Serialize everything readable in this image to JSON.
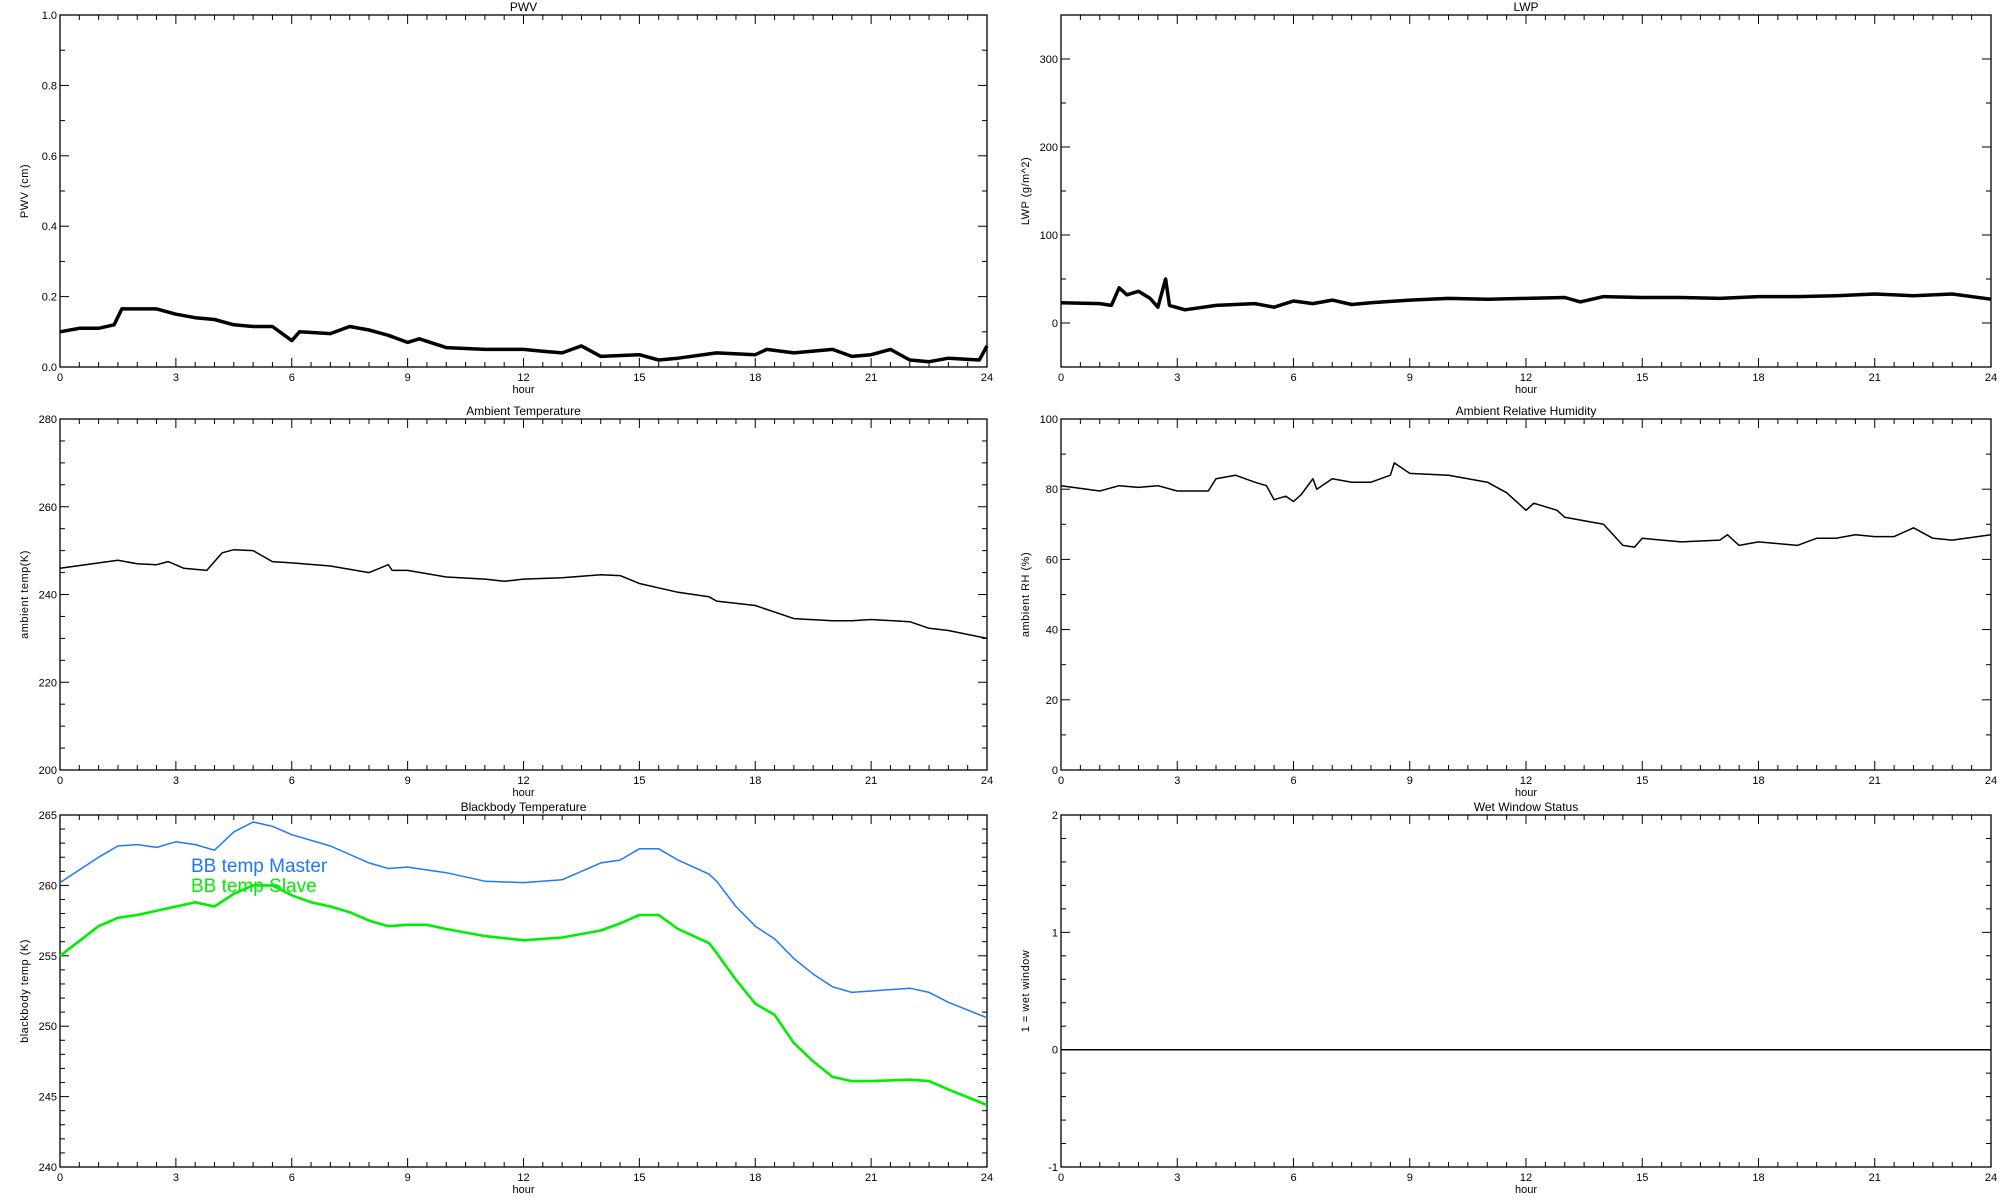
{
  "chart_data": [
    {
      "type": "line",
      "title": "PWV",
      "xlabel": "hour",
      "ylabel": "PWV (cm)",
      "xlim": [
        0,
        24
      ],
      "ylim": [
        0,
        1.0
      ],
      "xticks": [
        "0",
        "3",
        "6",
        "9",
        "12",
        "15",
        "18",
        "21",
        "24"
      ],
      "yticks": [
        "0.0",
        "0.2",
        "0.4",
        "0.6",
        "0.8",
        "1.0"
      ],
      "grid": false,
      "series": [
        {
          "color": "#000000",
          "x": [
            0,
            0.5,
            1,
            1.4,
            1.6,
            2,
            2.5,
            3,
            3.5,
            4,
            4.5,
            5,
            5.5,
            6,
            6.2,
            7,
            7.5,
            8,
            8.5,
            9,
            9.3,
            10,
            11,
            12,
            12.5,
            13,
            13.5,
            14,
            15,
            15.5,
            16,
            17,
            18,
            18.3,
            19,
            20,
            20.5,
            21,
            21.5,
            22,
            22.5,
            23,
            23.8,
            24
          ],
          "y": [
            0.1,
            0.11,
            0.11,
            0.12,
            0.165,
            0.165,
            0.165,
            0.15,
            0.14,
            0.135,
            0.12,
            0.115,
            0.115,
            0.075,
            0.1,
            0.095,
            0.115,
            0.105,
            0.09,
            0.07,
            0.08,
            0.055,
            0.05,
            0.05,
            0.045,
            0.04,
            0.06,
            0.03,
            0.035,
            0.02,
            0.025,
            0.04,
            0.035,
            0.05,
            0.04,
            0.05,
            0.03,
            0.035,
            0.05,
            0.02,
            0.015,
            0.025,
            0.02,
            0.06
          ]
        }
      ]
    },
    {
      "type": "line",
      "title": "LWP",
      "xlabel": "hour",
      "ylabel": "LWP (g/m^2)",
      "xlim": [
        0,
        24
      ],
      "ylim": [
        -50,
        350
      ],
      "xticks": [
        "0",
        "3",
        "6",
        "9",
        "12",
        "15",
        "18",
        "21",
        "24"
      ],
      "yticks": [
        "0",
        "100",
        "200",
        "300"
      ],
      "grid": false,
      "series": [
        {
          "color": "#000000",
          "x": [
            0,
            1,
            1.3,
            1.5,
            1.7,
            2,
            2.3,
            2.5,
            2.7,
            2.8,
            3.2,
            4,
            5,
            5.5,
            6,
            6.5,
            7,
            7.5,
            8,
            9,
            10,
            11,
            12,
            13,
            13.4,
            14,
            15,
            16,
            17,
            18,
            19,
            20,
            21,
            22,
            23,
            24
          ],
          "y": [
            23,
            22,
            20,
            40,
            32,
            36,
            28,
            18,
            50,
            20,
            15,
            20,
            22,
            18,
            25,
            22,
            26,
            21,
            23,
            26,
            28,
            27,
            28,
            29,
            24,
            30,
            29,
            29,
            28,
            30,
            30,
            31,
            33,
            31,
            33,
            27
          ]
        }
      ]
    },
    {
      "type": "line",
      "title": "Ambient Temperature",
      "xlabel": "hour",
      "ylabel": "ambient temp(K)",
      "xlim": [
        0,
        24
      ],
      "ylim": [
        200,
        280
      ],
      "xticks": [
        "0",
        "3",
        "6",
        "9",
        "12",
        "15",
        "18",
        "21",
        "24"
      ],
      "yticks": [
        "200",
        "220",
        "240",
        "260",
        "280"
      ],
      "grid": false,
      "series": [
        {
          "color": "#000000",
          "x": [
            0,
            1.5,
            2,
            2.5,
            2.8,
            3.2,
            3.8,
            4.2,
            4.5,
            5,
            5.5,
            6,
            7,
            8,
            8.5,
            8.6,
            9,
            10,
            11,
            11.5,
            12,
            13,
            14,
            14.5,
            15,
            16,
            16.8,
            17,
            18,
            19,
            20,
            20.5,
            21,
            22,
            22.5,
            23,
            24
          ],
          "y": [
            246,
            247.8,
            247,
            246.8,
            247.5,
            246,
            245.5,
            249.5,
            250.2,
            250,
            247.5,
            247.2,
            246.5,
            245,
            246.8,
            245.5,
            245.5,
            244,
            243.5,
            243,
            243.5,
            243.8,
            244.5,
            244.3,
            242.5,
            240.5,
            239.5,
            238.5,
            237.5,
            234.5,
            234,
            234,
            234.3,
            233.8,
            232.3,
            231.8,
            230
          ]
        }
      ]
    },
    {
      "type": "line",
      "title": "Ambient Relative Humidity",
      "xlabel": "hour",
      "ylabel": "ambient RH (%)",
      "xlim": [
        0,
        24
      ],
      "ylim": [
        0,
        100
      ],
      "xticks": [
        "0",
        "3",
        "6",
        "9",
        "12",
        "15",
        "18",
        "21",
        "24"
      ],
      "yticks": [
        "0",
        "20",
        "40",
        "60",
        "80",
        "100"
      ],
      "grid": false,
      "series": [
        {
          "color": "#000000",
          "x": [
            0,
            1,
            1.5,
            2,
            2.5,
            3,
            3.8,
            4,
            4.5,
            5,
            5.3,
            5.5,
            5.8,
            6,
            6.2,
            6.5,
            6.6,
            7,
            7.5,
            8,
            8.5,
            8.6,
            9,
            10,
            11,
            11.5,
            12,
            12.2,
            12.8,
            13,
            13.5,
            14,
            14.5,
            14.8,
            15,
            16,
            17,
            17.2,
            17.5,
            18,
            18.5,
            19,
            19.5,
            20,
            20.5,
            21,
            21.5,
            22,
            22.5,
            23,
            24
          ],
          "y": [
            81,
            79.5,
            81,
            80.5,
            81,
            79.5,
            79.5,
            83,
            84,
            82,
            81,
            77,
            78,
            76.5,
            78.5,
            83,
            80,
            83,
            82,
            82,
            84,
            87.5,
            84.5,
            84,
            82,
            79,
            74,
            76,
            74,
            72,
            71,
            70,
            64,
            63.5,
            66,
            65,
            65.5,
            67,
            64,
            65,
            64.5,
            64,
            66,
            66,
            67,
            66.5,
            66.5,
            69,
            66,
            65.5,
            67
          ]
        }
      ]
    },
    {
      "type": "line",
      "title": "Blackbody Temperature",
      "xlabel": "hour",
      "ylabel": "blackbody temp (K)",
      "xlim": [
        0,
        24
      ],
      "ylim": [
        240,
        265
      ],
      "xticks": [
        "0",
        "3",
        "6",
        "9",
        "12",
        "15",
        "18",
        "21",
        "24"
      ],
      "yticks": [
        "240",
        "245",
        "250",
        "255",
        "260",
        "265"
      ],
      "grid": false,
      "legend_position": "top-left",
      "series": [
        {
          "name": "BB temp Master",
          "color": "#1e78ff",
          "x": [
            0,
            1,
            1.5,
            2,
            2.5,
            3,
            3.5,
            4,
            4.5,
            5,
            5.5,
            6,
            7,
            8,
            8.5,
            9,
            10,
            11,
            12,
            13,
            14,
            14.5,
            15,
            15.5,
            16,
            16.8,
            17,
            17.5,
            18,
            18.5,
            19,
            19.5,
            20,
            20.5,
            21,
            22,
            22.5,
            23,
            24
          ],
          "y": [
            260.2,
            262,
            262.8,
            262.9,
            262.7,
            263.1,
            262.9,
            262.5,
            263.8,
            264.5,
            264.2,
            263.6,
            262.8,
            261.6,
            261.2,
            261.3,
            260.9,
            260.3,
            260.2,
            260.4,
            261.6,
            261.8,
            262.6,
            262.6,
            261.8,
            260.8,
            260.3,
            258.5,
            257.1,
            256.2,
            254.8,
            253.7,
            252.8,
            252.4,
            252.5,
            252.7,
            252.4,
            251.7,
            250.6
          ]
        },
        {
          "name": "BB temp Slave",
          "color": "#00ee00",
          "x": [
            0,
            1,
            1.5,
            2,
            3,
            3.5,
            4,
            4.5,
            5,
            5.5,
            6,
            6.5,
            7,
            7.5,
            8,
            8.5,
            9,
            9.5,
            10,
            11,
            12,
            13,
            14,
            14.5,
            15,
            15.5,
            16,
            16.8,
            17,
            17.5,
            18,
            18.5,
            19,
            19.5,
            20,
            20.5,
            21,
            22,
            22.5,
            23,
            24
          ],
          "y": [
            255,
            257.1,
            257.7,
            257.9,
            258.5,
            258.8,
            258.5,
            259.4,
            260,
            260,
            259.3,
            258.8,
            258.5,
            258.1,
            257.5,
            257.1,
            257.2,
            257.2,
            256.9,
            256.4,
            256.1,
            256.3,
            256.8,
            257.3,
            257.9,
            257.9,
            256.9,
            255.9,
            255.2,
            253.3,
            251.6,
            250.8,
            248.8,
            247.5,
            246.4,
            246.1,
            246.1,
            246.2,
            246.1,
            245.5,
            244.4
          ]
        }
      ]
    },
    {
      "type": "line",
      "title": "Wet Window Status",
      "xlabel": "hour",
      "ylabel": "1 = wet window",
      "xlim": [
        0,
        24
      ],
      "ylim": [
        -1,
        2
      ],
      "xticks": [
        "0",
        "3",
        "6",
        "9",
        "12",
        "15",
        "18",
        "21",
        "24"
      ],
      "yticks": [
        "-1",
        "0",
        "1",
        "2"
      ],
      "grid": false,
      "series": [
        {
          "color": "#000000",
          "x": [
            0,
            24
          ],
          "y": [
            0,
            0
          ]
        }
      ]
    }
  ]
}
